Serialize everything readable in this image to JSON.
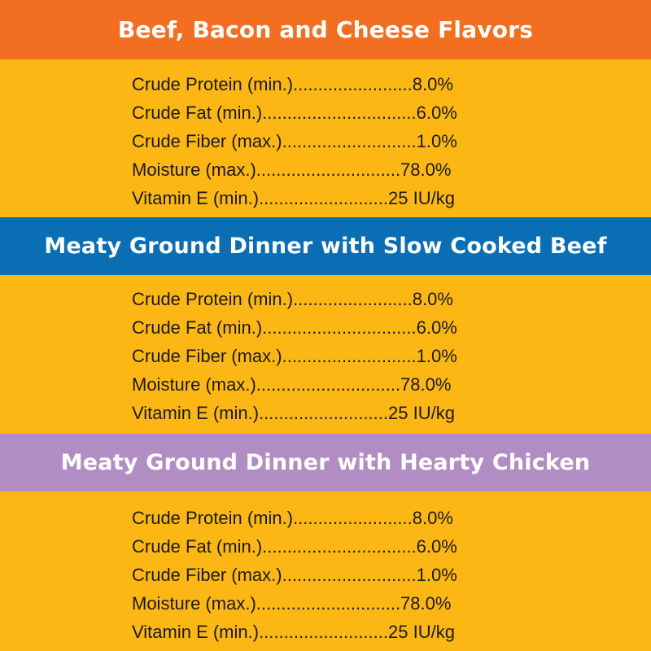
{
  "colors": {
    "background": "#FDB714",
    "section_1_header": "#F26F21",
    "section_2_header": "#0A6EB4",
    "section_3_header": "#B28DC4",
    "header_text": "#FFFFFF",
    "body_text": "#1A1A1A"
  },
  "sections": [
    {
      "title": "Beef, Bacon and Cheese Flavors",
      "rows": [
        "Crude Protein (min.)........................8.0%",
        "Crude Fat (min.)...............................6.0%",
        "Crude Fiber (max.)...........................1.0%",
        "Moisture (max.).............................78.0%",
        "Vitamin E (min.)..........................25 IU/kg"
      ]
    },
    {
      "title": "Meaty Ground Dinner with Slow Cooked Beef",
      "rows": [
        "Crude Protein (min.)........................8.0%",
        "Crude Fat (min.)...............................6.0%",
        "Crude Fiber (max.)...........................1.0%",
        "Moisture (max.).............................78.0%",
        "Vitamin E (min.)..........................25 IU/kg"
      ]
    },
    {
      "title": "Meaty Ground Dinner with Hearty Chicken",
      "rows": [
        "Crude Protein (min.)........................8.0%",
        "Crude Fat (min.)...............................6.0%",
        "Crude Fiber (max.)...........................1.0%",
        "Moisture (max.).............................78.0%",
        "Vitamin E (min.)..........................25 IU/kg"
      ]
    }
  ]
}
